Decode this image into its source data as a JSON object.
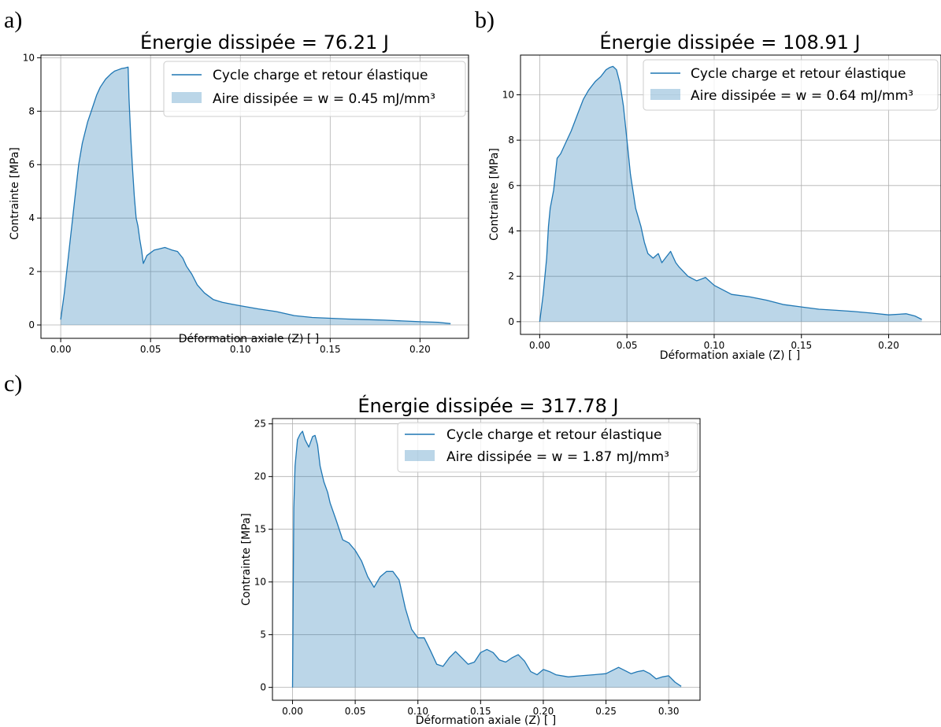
{
  "figure": {
    "panel_labels": [
      "a)",
      "b)",
      "c)"
    ]
  },
  "colors": {
    "line": "#1f77b4",
    "fill": "#1f77b4",
    "fill_opacity": 0.3,
    "grid": "#b0b0b0"
  },
  "chart_data": [
    {
      "type": "area",
      "panel": "a)",
      "title": "Énergie dissipée = 76.21 J",
      "xlabel": "Déformation axiale (Z) [ ]",
      "ylabel": "Contrainte [MPa]",
      "xlim": [
        -0.011,
        0.227
      ],
      "ylim": [
        -0.5,
        10.1
      ],
      "xticks": [
        0.0,
        0.05,
        0.1,
        0.15,
        0.2
      ],
      "xtick_labels": [
        "0.00",
        "0.05",
        "0.10",
        "0.15",
        "0.20"
      ],
      "yticks": [
        0,
        2,
        4,
        6,
        8,
        10
      ],
      "ytick_labels": [
        "0",
        "2",
        "4",
        "6",
        "8",
        "10"
      ],
      "grid": true,
      "legend_position": "upper right",
      "series": [
        {
          "name": "Cycle charge et retour élastique",
          "kind": "line"
        },
        {
          "name": "Aire dissipée = w = 0.45 mJ/mm³",
          "kind": "fill"
        }
      ],
      "x": [
        0.0,
        0.002,
        0.005,
        0.008,
        0.01,
        0.012,
        0.015,
        0.018,
        0.02,
        0.022,
        0.025,
        0.028,
        0.03,
        0.032,
        0.034,
        0.036,
        0.0375,
        0.038,
        0.039,
        0.04,
        0.041,
        0.042,
        0.043,
        0.044,
        0.045,
        0.046,
        0.048,
        0.05,
        0.052,
        0.055,
        0.058,
        0.06,
        0.062,
        0.065,
        0.068,
        0.07,
        0.073,
        0.076,
        0.08,
        0.085,
        0.09,
        0.095,
        0.1,
        0.11,
        0.12,
        0.13,
        0.14,
        0.15,
        0.16,
        0.17,
        0.18,
        0.19,
        0.2,
        0.21,
        0.217
      ],
      "y": [
        0.2,
        1.2,
        3.0,
        4.8,
        6.0,
        6.8,
        7.6,
        8.2,
        8.6,
        8.9,
        9.2,
        9.4,
        9.5,
        9.55,
        9.6,
        9.62,
        9.65,
        8.5,
        7.0,
        5.8,
        4.8,
        4.0,
        3.7,
        3.2,
        2.8,
        2.3,
        2.6,
        2.7,
        2.8,
        2.85,
        2.9,
        2.85,
        2.8,
        2.75,
        2.5,
        2.2,
        1.9,
        1.5,
        1.2,
        0.95,
        0.85,
        0.78,
        0.72,
        0.6,
        0.5,
        0.35,
        0.28,
        0.25,
        0.22,
        0.2,
        0.18,
        0.15,
        0.12,
        0.1,
        0.05
      ]
    },
    {
      "type": "area",
      "panel": "b)",
      "title": "Énergie dissipée = 108.91 J",
      "xlabel": "Déformation axiale (Z) [ ]",
      "ylabel": "Contrainte [MPa]",
      "xlim": [
        -0.011,
        0.23
      ],
      "ylim": [
        -0.56,
        11.75
      ],
      "xticks": [
        0.0,
        0.05,
        0.1,
        0.15,
        0.2
      ],
      "xtick_labels": [
        "0.00",
        "0.05",
        "0.10",
        "0.15",
        "0.20"
      ],
      "yticks": [
        0,
        2,
        4,
        6,
        8,
        10
      ],
      "ytick_labels": [
        "0",
        "2",
        "4",
        "6",
        "8",
        "10"
      ],
      "grid": true,
      "legend_position": "upper right",
      "series": [
        {
          "name": "Cycle charge et retour élastique",
          "kind": "line"
        },
        {
          "name": "Aire dissipée = w = 0.64 mJ/mm³",
          "kind": "fill"
        }
      ],
      "x": [
        0.0,
        0.002,
        0.004,
        0.005,
        0.006,
        0.008,
        0.01,
        0.012,
        0.015,
        0.018,
        0.02,
        0.022,
        0.025,
        0.028,
        0.03,
        0.032,
        0.035,
        0.038,
        0.04,
        0.042,
        0.044,
        0.046,
        0.048,
        0.05,
        0.052,
        0.055,
        0.058,
        0.06,
        0.062,
        0.065,
        0.068,
        0.07,
        0.072,
        0.075,
        0.078,
        0.08,
        0.085,
        0.09,
        0.095,
        0.1,
        0.11,
        0.12,
        0.13,
        0.14,
        0.15,
        0.16,
        0.17,
        0.18,
        0.19,
        0.2,
        0.21,
        0.215,
        0.219
      ],
      "y": [
        0.0,
        1.2,
        2.8,
        4.2,
        5.0,
        5.8,
        7.2,
        7.4,
        7.9,
        8.4,
        8.8,
        9.2,
        9.8,
        10.2,
        10.4,
        10.6,
        10.8,
        11.1,
        11.2,
        11.25,
        11.1,
        10.5,
        9.5,
        8.0,
        6.5,
        5.0,
        4.2,
        3.5,
        3.0,
        2.8,
        3.0,
        2.6,
        2.8,
        3.1,
        2.6,
        2.4,
        2.0,
        1.8,
        1.95,
        1.6,
        1.2,
        1.1,
        0.95,
        0.75,
        0.65,
        0.55,
        0.5,
        0.45,
        0.38,
        0.3,
        0.35,
        0.25,
        0.1
      ]
    },
    {
      "type": "area",
      "panel": "c)",
      "title": "Énergie dissipée = 317.78 J",
      "xlabel": "Déformation axiale (Z) [ ]",
      "ylabel": "Contrainte [MPa]",
      "xlim": [
        -0.016,
        0.325
      ],
      "ylim": [
        -1.22,
        25.5
      ],
      "xticks": [
        0.0,
        0.05,
        0.1,
        0.15,
        0.2,
        0.25,
        0.3
      ],
      "xtick_labels": [
        "0.00",
        "0.05",
        "0.10",
        "0.15",
        "0.20",
        "0.25",
        "0.30"
      ],
      "yticks": [
        0,
        5,
        10,
        15,
        20,
        25
      ],
      "ytick_labels": [
        "0",
        "5",
        "10",
        "15",
        "20",
        "25"
      ],
      "grid": true,
      "legend_position": "upper right",
      "series": [
        {
          "name": "Cycle charge et retour élastique",
          "kind": "line"
        },
        {
          "name": "Aire dissipée = w = 1.87 mJ/mm³",
          "kind": "fill"
        }
      ],
      "x": [
        0.0,
        0.001,
        0.002,
        0.004,
        0.006,
        0.008,
        0.01,
        0.013,
        0.016,
        0.018,
        0.02,
        0.022,
        0.025,
        0.028,
        0.03,
        0.035,
        0.04,
        0.045,
        0.05,
        0.055,
        0.06,
        0.065,
        0.07,
        0.075,
        0.08,
        0.085,
        0.09,
        0.095,
        0.1,
        0.105,
        0.11,
        0.115,
        0.12,
        0.125,
        0.13,
        0.135,
        0.14,
        0.145,
        0.15,
        0.155,
        0.16,
        0.165,
        0.17,
        0.175,
        0.18,
        0.185,
        0.19,
        0.195,
        0.2,
        0.205,
        0.21,
        0.22,
        0.23,
        0.24,
        0.25,
        0.255,
        0.26,
        0.265,
        0.27,
        0.275,
        0.28,
        0.285,
        0.29,
        0.295,
        0.3,
        0.305,
        0.31
      ],
      "y": [
        0.0,
        17.0,
        21.0,
        23.5,
        24.0,
        24.3,
        23.5,
        22.8,
        23.8,
        23.9,
        23.0,
        21.0,
        19.5,
        18.5,
        17.5,
        15.8,
        14.0,
        13.7,
        13.0,
        12.0,
        10.5,
        9.5,
        10.5,
        11.0,
        11.0,
        10.2,
        7.5,
        5.5,
        4.7,
        4.7,
        3.5,
        2.2,
        2.0,
        2.8,
        3.4,
        2.8,
        2.2,
        2.4,
        3.3,
        3.6,
        3.3,
        2.6,
        2.4,
        2.8,
        3.1,
        2.5,
        1.5,
        1.2,
        1.7,
        1.5,
        1.2,
        1.0,
        1.1,
        1.2,
        1.3,
        1.6,
        1.9,
        1.6,
        1.3,
        1.5,
        1.6,
        1.3,
        0.8,
        1.0,
        1.1,
        0.5,
        0.1
      ]
    }
  ]
}
